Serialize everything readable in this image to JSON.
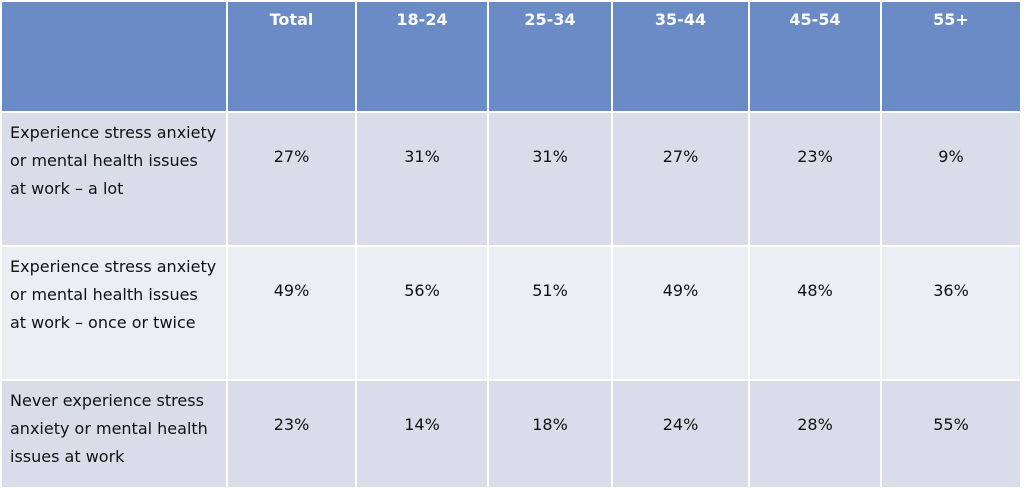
{
  "table": {
    "columns": [
      "",
      "Total",
      "18-24",
      "25-34",
      "35-44",
      "45-54",
      "55+"
    ],
    "rows": [
      [
        "Experience stress anxiety or mental health issues at work – a lot",
        "27%",
        "31%",
        "31%",
        "27%",
        "23%",
        "9%"
      ],
      [
        "Experience stress anxiety or mental health issues at work – once or twice",
        "49%",
        "56%",
        "51%",
        "49%",
        "48%",
        "36%"
      ],
      [
        "Never experience stress anxiety or mental health issues at work",
        "23%",
        "14%",
        "18%",
        "24%",
        "28%",
        "55%"
      ]
    ]
  }
}
